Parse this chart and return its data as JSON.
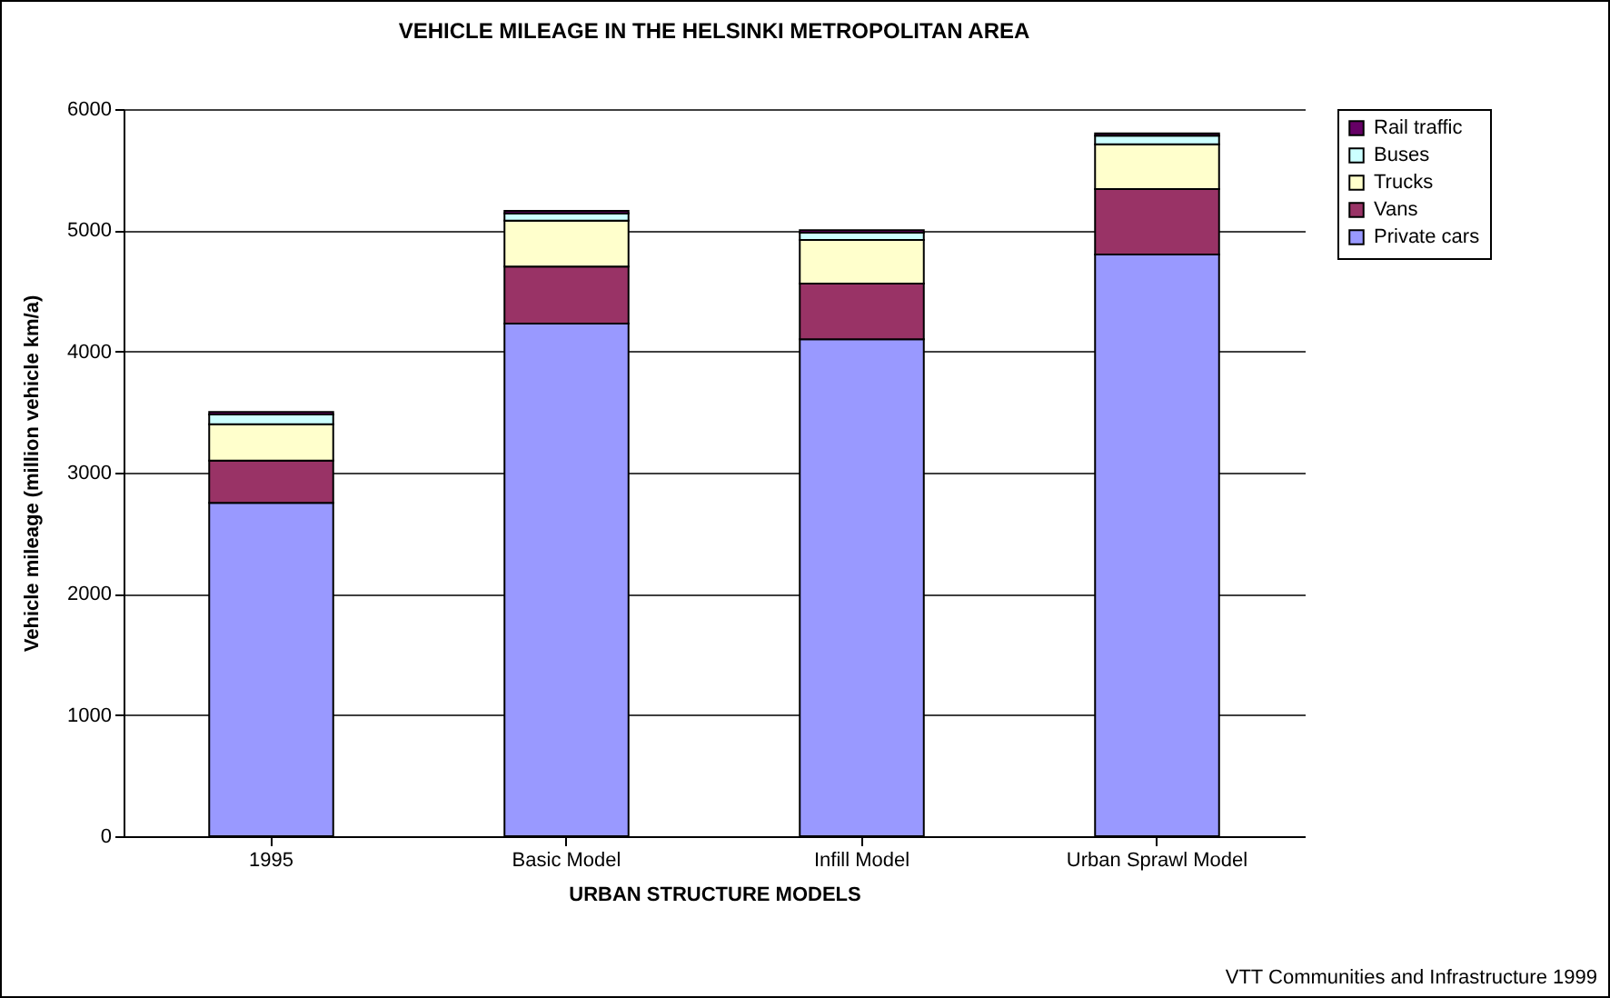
{
  "chart_data": {
    "type": "bar",
    "title": "VEHICLE MILEAGE IN THE HELSINKI METROPOLITAN AREA",
    "xlabel": "URBAN STRUCTURE MODELS",
    "ylabel": "Vehicle mileage (million vehicle km/a)",
    "categories": [
      "1995",
      "Basic Model",
      "Infill Model",
      "Urban Sprawl Model"
    ],
    "stacked": true,
    "series": [
      {
        "name": "Private cars",
        "color": "#9999ff",
        "values": [
          2750,
          4230,
          4100,
          4800
        ]
      },
      {
        "name": "Vans",
        "color": "#993366",
        "values": [
          350,
          470,
          460,
          540
        ]
      },
      {
        "name": "Trucks",
        "color": "#ffffcc",
        "values": [
          300,
          380,
          360,
          370
        ]
      },
      {
        "name": "Buses",
        "color": "#ccffff",
        "values": [
          80,
          60,
          60,
          70
        ]
      },
      {
        "name": "Rail traffic",
        "color": "#660066",
        "values": [
          20,
          20,
          20,
          20
        ]
      }
    ],
    "ylim": [
      0,
      6000
    ],
    "yticks": [
      0,
      1000,
      2000,
      3000,
      4000,
      5000,
      6000
    ],
    "grid": "y",
    "legend": "right",
    "annotations": [
      "VTT Communities and Infrastructure 1999"
    ]
  }
}
